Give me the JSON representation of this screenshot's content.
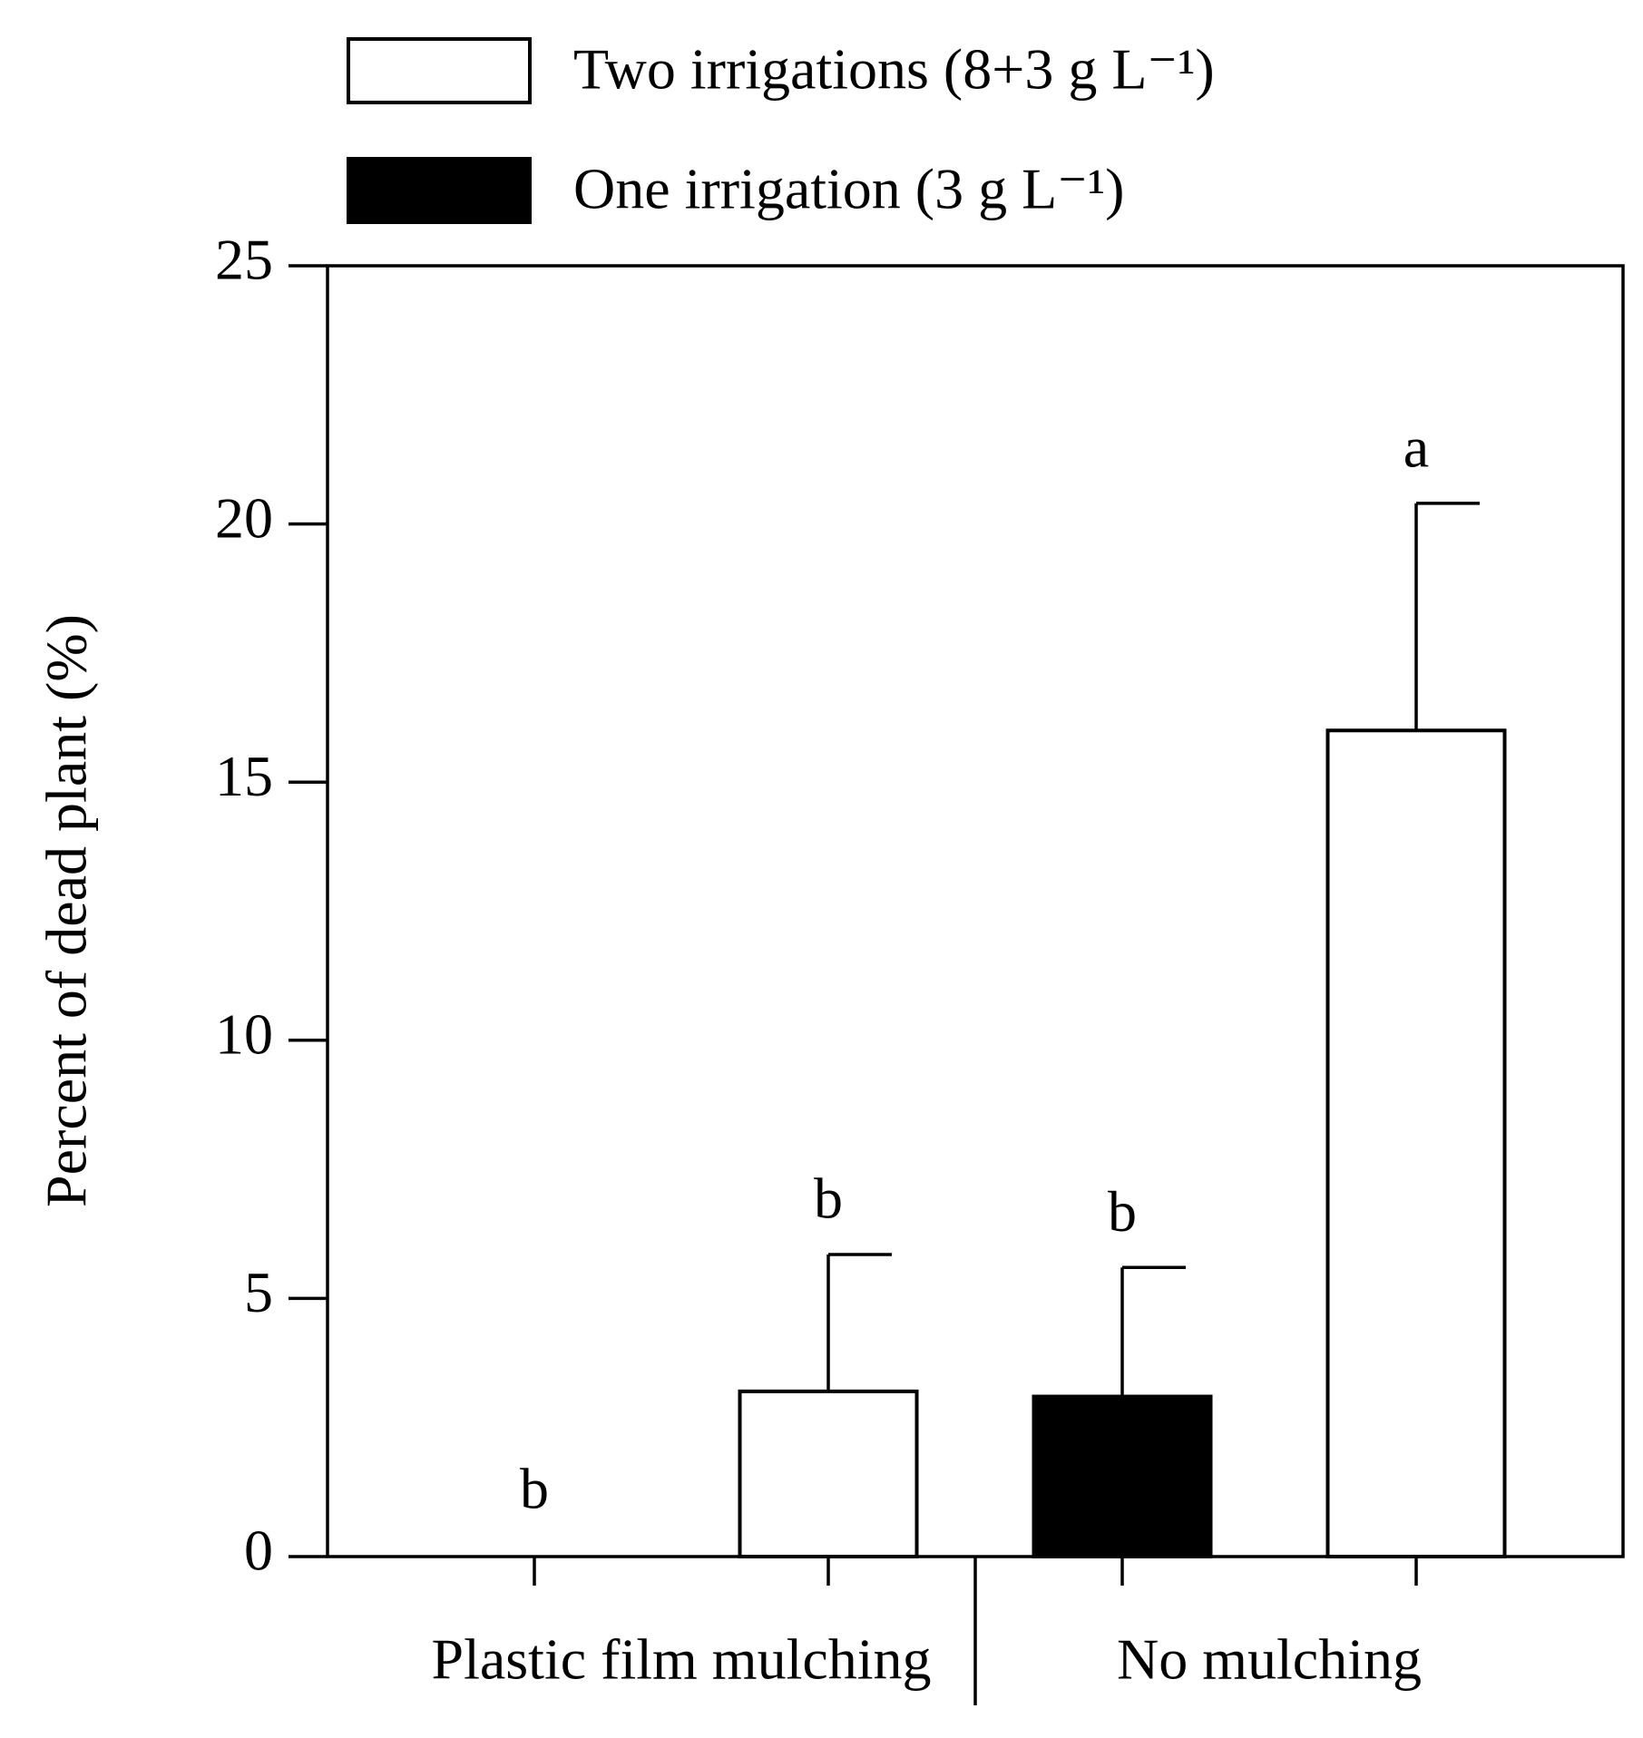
{
  "chart_data": {
    "type": "bar",
    "y_label": "Percent of dead plant (%)",
    "categories": [
      "Plastic film mulching",
      "No mulching"
    ],
    "series": [
      {
        "name": "One irrigation (3 g L⁻¹)",
        "color": "#000000",
        "values": [
          0,
          3.1
        ],
        "errors": [
          0,
          2.5
        ],
        "letters": [
          "b",
          "b"
        ]
      },
      {
        "name": "Two irrigations (8+3 g L⁻¹)",
        "color": "#ffffff",
        "values": [
          3.2,
          16
        ],
        "errors": [
          2.65,
          4.4
        ],
        "letters": [
          "b",
          "a"
        ]
      }
    ],
    "ylim": [
      0,
      25
    ],
    "yticks": [
      0,
      5,
      10,
      15,
      20,
      25
    ]
  }
}
